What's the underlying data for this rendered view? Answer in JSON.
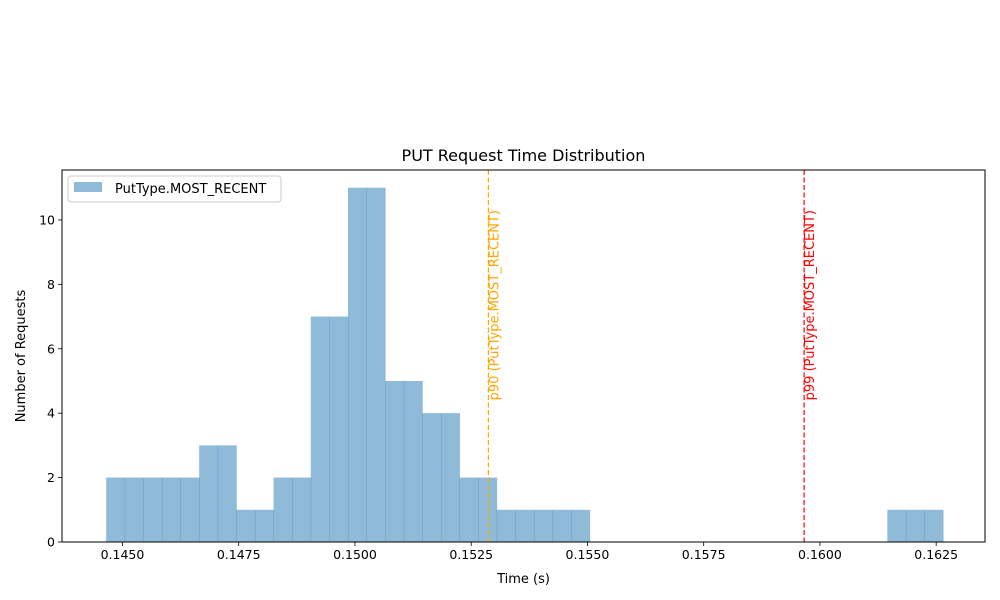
{
  "chart_data": {
    "type": "bar",
    "title": "PUT Request Time Distribution",
    "xlabel": "Time (s)",
    "ylabel": "Number of Requests",
    "xlim": [
      0.1437,
      0.16355
    ],
    "ylim": [
      0,
      11.55
    ],
    "x_ticks": [
      0.145,
      0.1475,
      0.15,
      0.1525,
      0.155,
      0.1575,
      0.16,
      0.1625
    ],
    "x_tick_labels": [
      "0.1450",
      "0.1475",
      "0.1500",
      "0.1525",
      "0.1550",
      "0.1575",
      "0.1600",
      "0.1625"
    ],
    "y_ticks": [
      0,
      2,
      4,
      6,
      8,
      10
    ],
    "y_tick_labels": [
      "0",
      "2",
      "4",
      "6",
      "8",
      "10"
    ],
    "grid": false,
    "legend_position": "upper-left",
    "series": [
      {
        "name": "PutType.MOST_RECENT",
        "color": "#1f77b4",
        "opacity": 0.5,
        "bin_edges": [
          0.14465,
          0.14505,
          0.14545,
          0.14585,
          0.14625,
          0.14665,
          0.14705,
          0.14745,
          0.14785,
          0.14825,
          0.14865,
          0.14905,
          0.14945,
          0.14985,
          0.15025,
          0.15065,
          0.15105,
          0.15145,
          0.15185,
          0.15225,
          0.15265,
          0.15305,
          0.15345,
          0.15385,
          0.15425,
          0.15465,
          0.15505,
          0.15545,
          0.15585,
          0.15625,
          0.15665,
          0.15705,
          0.15745,
          0.15785,
          0.15825,
          0.15865,
          0.15905,
          0.15945,
          0.15985,
          0.16025,
          0.16065,
          0.16105,
          0.16145,
          0.16185,
          0.16225,
          0.16265
        ],
        "counts": [
          2,
          2,
          2,
          2,
          2,
          3,
          3,
          1,
          1,
          2,
          2,
          7,
          7,
          11,
          11,
          5,
          5,
          4,
          4,
          2,
          2,
          1,
          1,
          1,
          1,
          1,
          0,
          0,
          0,
          0,
          0,
          0,
          0,
          0,
          0,
          0,
          0,
          0,
          0,
          0,
          0,
          0,
          1,
          1,
          1
        ]
      }
    ],
    "vlines": [
      {
        "label": "p90 (PutType.MOST_RECENT)",
        "x": 0.15287,
        "color": "#ffa500",
        "style": "dashed"
      },
      {
        "label": "p99 (PutType.MOST_RECENT)",
        "x": 0.15966,
        "color": "#ff0000",
        "style": "dashed"
      }
    ]
  }
}
